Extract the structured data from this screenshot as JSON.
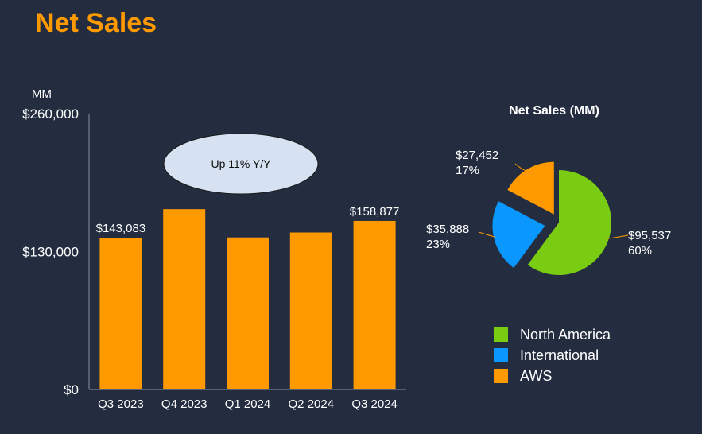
{
  "slide_title": "Net Sales",
  "colors": {
    "background": "#232d3f",
    "bar": "#ff9900",
    "north_america": "#7acc12",
    "international": "#0a97ff",
    "aws": "#ff9900",
    "callout_fill": "#d6e1f2"
  },
  "chart_data": [
    {
      "type": "bar",
      "unit_label": "MM",
      "categories": [
        "Q3 2023",
        "Q4 2023",
        "Q1 2024",
        "Q2 2024",
        "Q3 2024"
      ],
      "values": [
        143083,
        169961,
        143313,
        147977,
        158877
      ],
      "data_labels": [
        "$143,083",
        "",
        "",
        "",
        "$158,877"
      ],
      "ylim": [
        0,
        260000
      ],
      "y_ticks": [
        0,
        130000,
        260000
      ],
      "y_tick_labels": [
        "$0",
        "$130,000",
        "$260,000"
      ],
      "callout": "Up 11% Y/Y"
    },
    {
      "type": "pie",
      "title": "Net Sales (MM)",
      "slices": [
        {
          "name": "North America",
          "value": 95537,
          "label": "$95,537",
          "percent": "60%"
        },
        {
          "name": "International",
          "value": 35888,
          "label": "$35,888",
          "percent": "23%"
        },
        {
          "name": "AWS",
          "value": 27452,
          "label": "$27,452",
          "percent": "17%"
        }
      ]
    }
  ]
}
